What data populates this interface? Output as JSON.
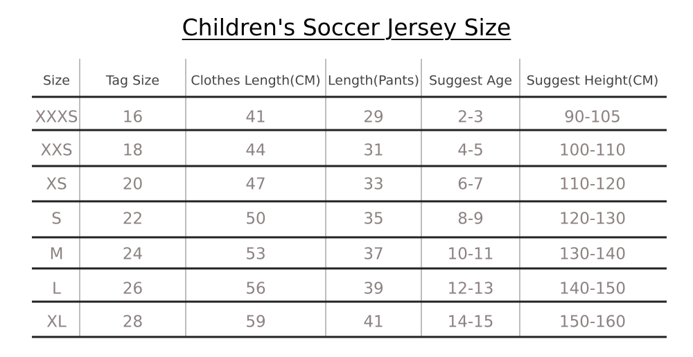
{
  "title": "Children's Soccer Jersey Size",
  "table": {
    "header": [
      "Size",
      "Tag Size",
      "Clothes Length(CM)",
      "Length(Pants)",
      "Suggest Age",
      "Suggest Height(CM)"
    ],
    "rows": [
      [
        "XXXS",
        16,
        41,
        29,
        "2-3",
        "90-105"
      ],
      [
        "XXS",
        18,
        44,
        31,
        "4-5",
        "100-110"
      ],
      [
        "XS",
        20,
        47,
        33,
        "6-7",
        "110-120"
      ],
      [
        "S",
        22,
        50,
        35,
        "8-9",
        "120-130"
      ],
      [
        "M",
        24,
        53,
        37,
        "10-11",
        "130-140"
      ],
      [
        "L",
        26,
        56,
        39,
        "12-13",
        "140-150"
      ],
      [
        "XL",
        28,
        59,
        41,
        "14-15",
        "150-160"
      ]
    ]
  }
}
